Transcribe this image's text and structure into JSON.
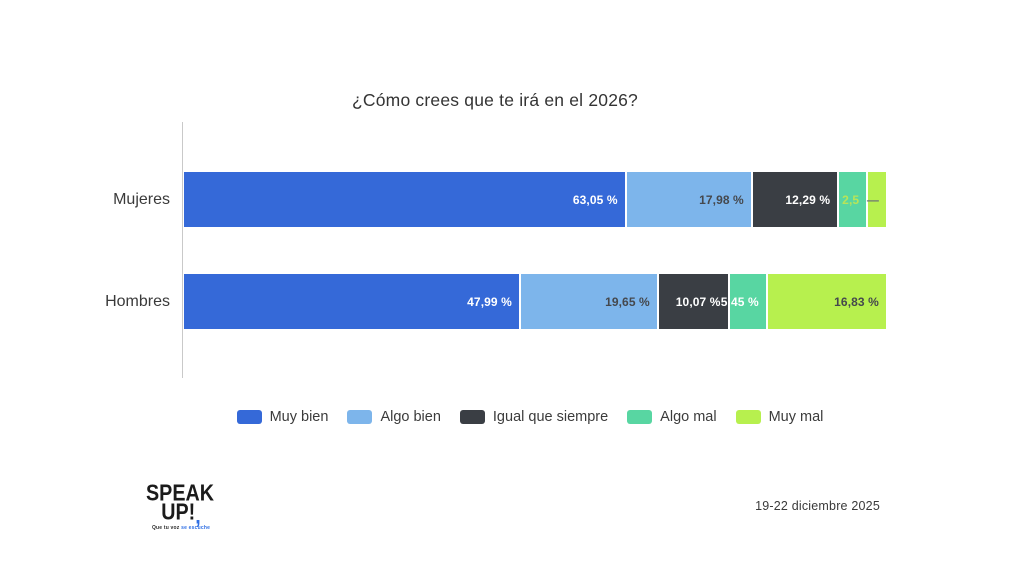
{
  "title": "¿Cómo crees que te irá en el 2026?",
  "chart_data": {
    "type": "bar",
    "orientation": "horizontal",
    "stacked": true,
    "title": "¿Cómo crees que te irá en el 2026?",
    "categories": [
      "Mujeres",
      "Hombres"
    ],
    "xlim": [
      0,
      100
    ],
    "grid": false,
    "legend_position": "bottom",
    "series": [
      {
        "name": "Muy bien",
        "color": "#3569d8",
        "values": [
          63.05,
          47.99
        ],
        "labels": [
          "63,05 %",
          "47,99 %"
        ],
        "label_colors": [
          "#ffffff",
          "#ffffff"
        ]
      },
      {
        "name": "Algo bien",
        "color": "#7db5eb",
        "values": [
          17.98,
          19.65
        ],
        "labels": [
          "17,98 %",
          "19,65 %"
        ],
        "label_colors": [
          "#45484d",
          "#45484d"
        ]
      },
      {
        "name": "Igual que siempre",
        "color": "#3a3e44",
        "values": [
          12.29,
          10.07
        ],
        "labels": [
          "12,29 %",
          "10,07 %"
        ],
        "label_colors": [
          "#ffffff",
          "#ffffff"
        ]
      },
      {
        "name": "Algo mal",
        "color": "#58d6a2",
        "values": [
          4.14,
          5.45
        ],
        "labels": [
          "2,5",
          "5,45 %"
        ],
        "label_colors": [
          "#b9e457",
          "#ffffff"
        ]
      },
      {
        "name": "Muy mal",
        "color": "#b7f04e",
        "values": [
          2.54,
          16.83
        ],
        "labels": [
          "—",
          "16,83 %"
        ],
        "label_colors": [
          "#6b7076",
          "#45484d"
        ]
      }
    ]
  },
  "layout": {
    "row_tops": [
      172,
      274
    ]
  },
  "footer": {
    "date_range": "19-22 diciembre 2025",
    "logo": {
      "line1": "SPEAK",
      "line2": "UP!",
      "comma": ",",
      "tagline_dark": "Que tu voz",
      "tagline_blue": "se escuche",
      "accent": "#2f6fe4"
    }
  }
}
